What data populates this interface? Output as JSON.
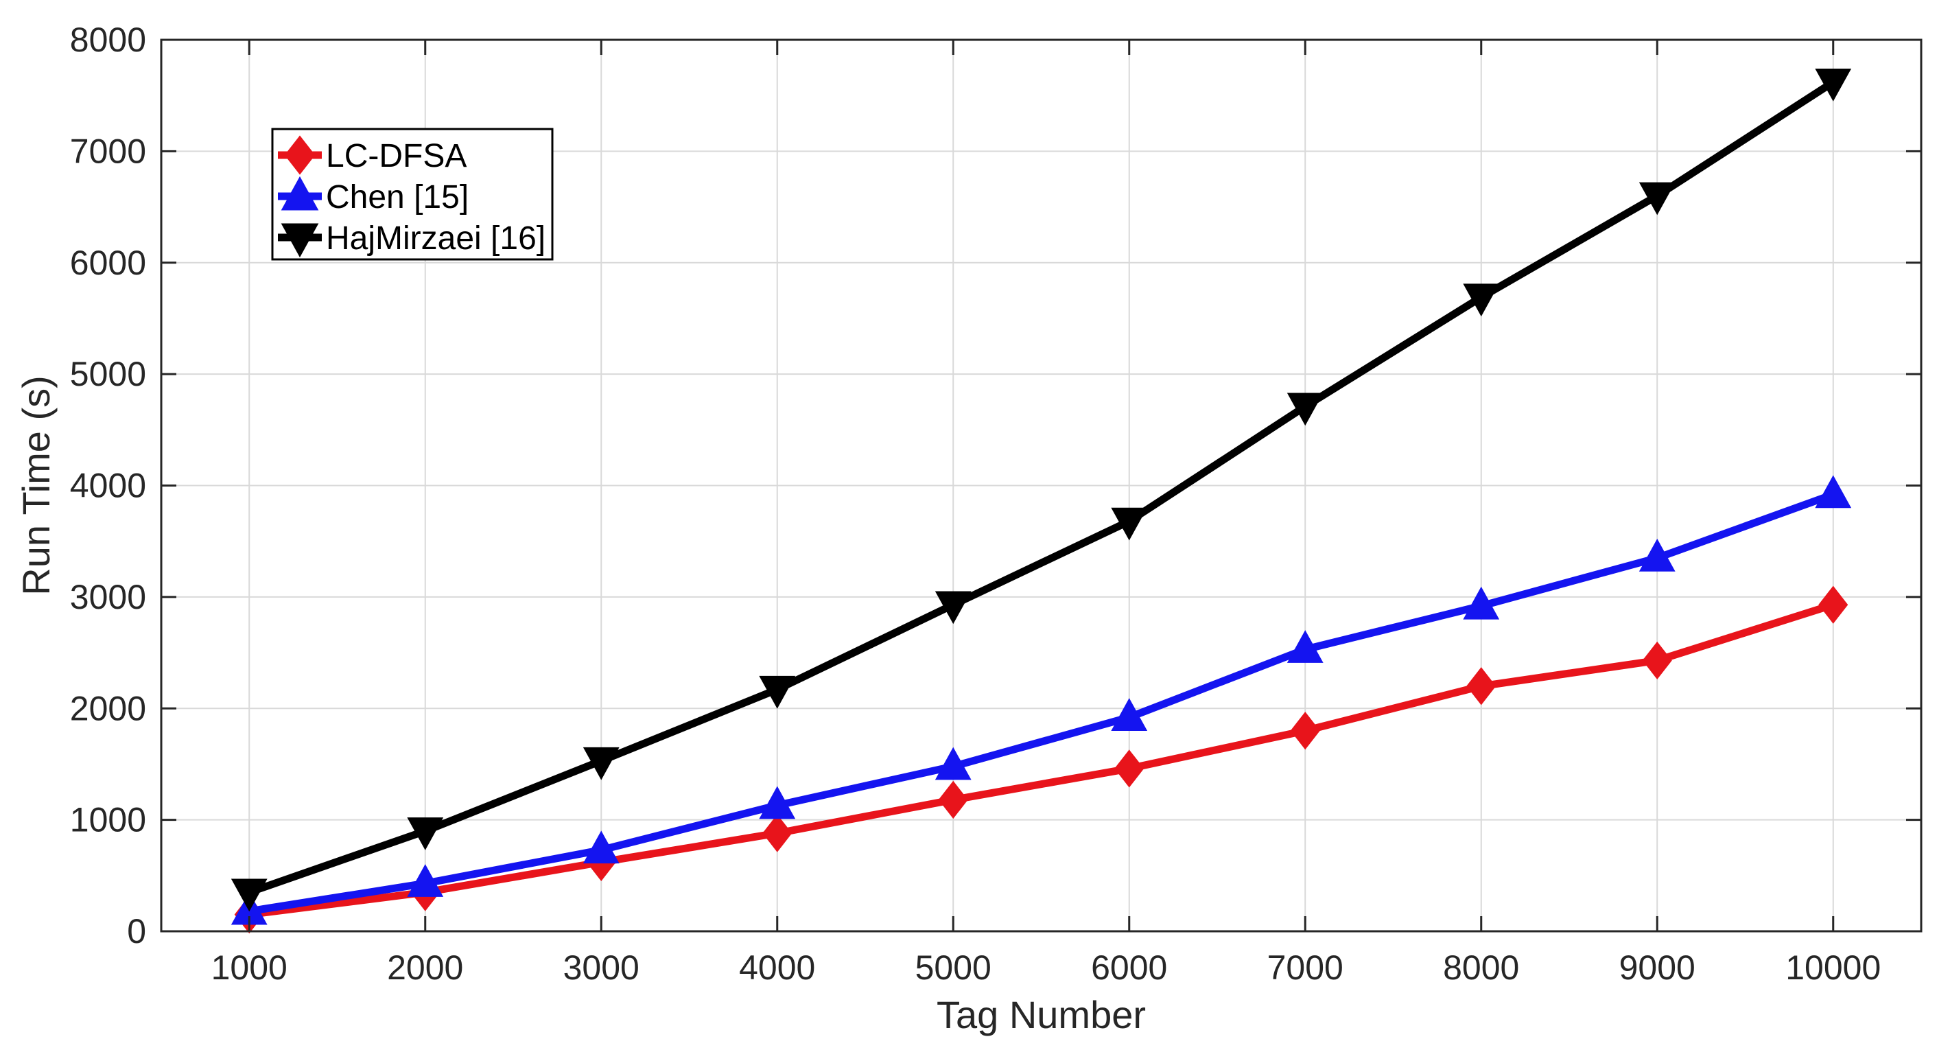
{
  "chart_data": {
    "type": "line",
    "title": "",
    "xlabel": "Tag Number",
    "ylabel": "Run Time (s)",
    "x": [
      1000,
      2000,
      3000,
      4000,
      5000,
      6000,
      7000,
      8000,
      9000,
      10000
    ],
    "xlim": [
      500,
      10500
    ],
    "ylim": [
      0,
      8000
    ],
    "xticks": [
      1000,
      2000,
      3000,
      4000,
      5000,
      6000,
      7000,
      8000,
      9000,
      10000
    ],
    "yticks": [
      0,
      1000,
      2000,
      3000,
      4000,
      5000,
      6000,
      7000,
      8000
    ],
    "xtick_labels": [
      "1000",
      "2000",
      "3000",
      "4000",
      "5000",
      "6000",
      "7000",
      "8000",
      "9000",
      "10000"
    ],
    "ytick_labels": [
      "0",
      "1000",
      "2000",
      "3000",
      "4000",
      "5000",
      "6000",
      "7000",
      "8000"
    ],
    "grid": true,
    "legend_position": "top-left",
    "series": [
      {
        "name": "LC-DFSA",
        "color": "#e8141b",
        "marker": "diamond",
        "values": [
          150,
          350,
          620,
          880,
          1180,
          1460,
          1800,
          2200,
          2430,
          2930
        ]
      },
      {
        "name": "Chen [15]",
        "color": "#1414f0",
        "marker": "triangle-up",
        "values": [
          180,
          430,
          730,
          1130,
          1480,
          1920,
          2530,
          2920,
          3350,
          3920
        ]
      },
      {
        "name": "HajMirzaei [16]",
        "color": "#000000",
        "marker": "triangle-down",
        "values": [
          350,
          900,
          1530,
          2170,
          2930,
          3680,
          4710,
          5690,
          6600,
          7620
        ]
      }
    ]
  }
}
